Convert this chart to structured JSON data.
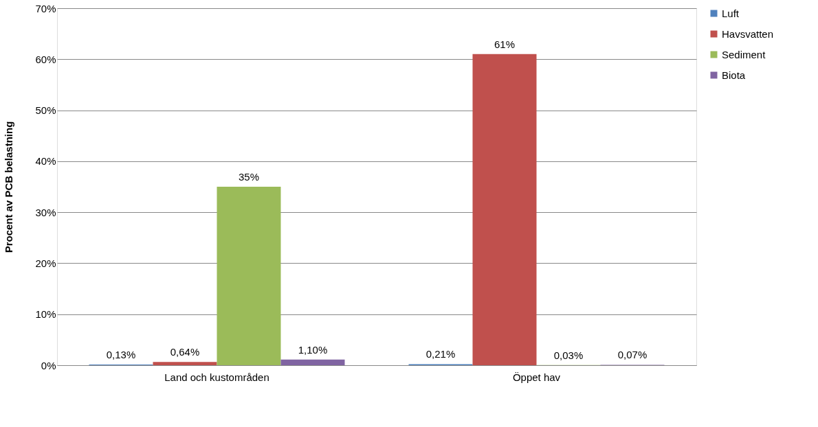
{
  "chart_data": {
    "type": "bar",
    "ylabel": "Procent av PCB belastning",
    "categories": [
      "Land och kustområden",
      "Öppet hav"
    ],
    "series": [
      {
        "name": "Luft",
        "color": "#4f81bd",
        "values": [
          0.13,
          0.21
        ],
        "value_labels": [
          "0,13%",
          "0,21%"
        ]
      },
      {
        "name": "Havsvatten",
        "color": "#c0504d",
        "values": [
          0.64,
          61
        ],
        "value_labels": [
          "0,64%",
          "61%"
        ]
      },
      {
        "name": "Sediment",
        "color": "#9bbb59",
        "values": [
          35,
          0.03
        ],
        "value_labels": [
          "35%",
          "0,03%"
        ]
      },
      {
        "name": "Biota",
        "color": "#8064a2",
        "values": [
          1.1,
          0.07
        ],
        "value_labels": [
          "1,10%",
          "0,07%"
        ]
      }
    ],
    "ylim": [
      0,
      70
    ],
    "yticks": [
      {
        "value": 0,
        "label": "0%"
      },
      {
        "value": 10,
        "label": "10%"
      },
      {
        "value": 20,
        "label": "20%"
      },
      {
        "value": 30,
        "label": "30%"
      },
      {
        "value": 40,
        "label": "40%"
      },
      {
        "value": 50,
        "label": "50%"
      },
      {
        "value": 60,
        "label": "60%"
      },
      {
        "value": 70,
        "label": "70%"
      }
    ],
    "grid": "y",
    "legend": "right"
  }
}
